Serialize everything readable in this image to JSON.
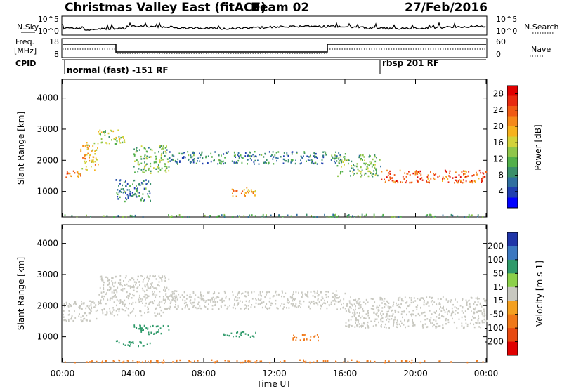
{
  "header": {
    "title": "Christmas Valley East (fitACF)",
    "beam": "Beam 02",
    "date": "27/Feb/2016"
  },
  "top_panels": {
    "nsky_label": "N.Sky",
    "nsearch_label": "N.Search",
    "noise_ticks": [
      "10^5",
      "10^0"
    ],
    "freq_label_1": "Freq.",
    "freq_label_2": "[MHz]",
    "freq_ticks": [
      "18",
      "8"
    ],
    "nave_label": "Nave",
    "nave_ticks": [
      "60",
      "0"
    ],
    "cpid_label": "CPID",
    "cpid_segments": [
      {
        "label": "normal (fast) -151 RF"
      },
      {
        "label": "rbsp 201 RF"
      }
    ]
  },
  "chart_data": [
    {
      "type": "heatmap",
      "name": "power",
      "xlabel": "Time UT",
      "ylabel": "Slant Range [km]",
      "xlim": [
        0,
        24
      ],
      "x_ticks": [
        "00:00",
        "04:00",
        "08:00",
        "12:00",
        "16:00",
        "20:00",
        "00:00"
      ],
      "ylim": [
        180,
        4600
      ],
      "y_ticks": [
        1000,
        2000,
        3000,
        4000
      ],
      "colorbar": {
        "label": "Power [dB]",
        "range": [
          0,
          30
        ],
        "ticks": [
          "4",
          "8",
          "12",
          "16",
          "20",
          "24",
          "28"
        ],
        "colors": [
          "#0000ff",
          "#1f3fb0",
          "#2f6fa0",
          "#3a8f6a",
          "#52b04a",
          "#8fc64a",
          "#d2d23a",
          "#f6b21e",
          "#f5891a",
          "#f05a14",
          "#e82a10",
          "#e00000"
        ]
      },
      "features": [
        {
          "t": [
            0.0,
            1.0
          ],
          "r": [
            1450,
            1700
          ],
          "v": 22
        },
        {
          "t": [
            1.0,
            2.0
          ],
          "r": [
            1700,
            2600
          ],
          "v": 18
        },
        {
          "t": [
            2.0,
            3.5
          ],
          "r": [
            2500,
            3000
          ],
          "v": 14
        },
        {
          "t": [
            4.0,
            6.0
          ],
          "r": [
            1600,
            2500
          ],
          "v": 12
        },
        {
          "t": [
            3.0,
            5.0
          ],
          "r": [
            700,
            1400
          ],
          "v": 8
        },
        {
          "t": [
            9.5,
            11.0
          ],
          "r": [
            850,
            1150
          ],
          "v": 20
        },
        {
          "t": [
            6.0,
            16.0
          ],
          "r": [
            1900,
            2300
          ],
          "v": 8
        },
        {
          "t": [
            15.5,
            18.0
          ],
          "r": [
            1500,
            2200
          ],
          "v": 12
        },
        {
          "t": [
            18.0,
            24.0
          ],
          "r": [
            1300,
            1700
          ],
          "v": 24
        },
        {
          "t": [
            0.0,
            24.0
          ],
          "r": [
            200,
            280
          ],
          "v": 10
        }
      ]
    },
    {
      "type": "heatmap",
      "name": "velocity",
      "xlabel": "Time UT",
      "ylabel": "Slant Range [km]",
      "xlim": [
        0,
        24
      ],
      "x_ticks": [
        "00:00",
        "04:00",
        "08:00",
        "12:00",
        "16:00",
        "20:00",
        "00:00"
      ],
      "ylim": [
        180,
        4600
      ],
      "y_ticks": [
        1000,
        2000,
        3000,
        4000
      ],
      "colorbar": {
        "label": "Velocity [m s-1]",
        "ticks": [
          "200",
          "100",
          "50",
          "15",
          "-15",
          "-50",
          "-100",
          "-200"
        ],
        "colors": [
          "#1f35a8",
          "#3c78c0",
          "#2f9a6a",
          "#8cd04a",
          "#c8c8c0",
          "#f4a020",
          "#f07818",
          "#e84a10",
          "#e00000"
        ]
      },
      "features": [
        {
          "t": [
            0.0,
            2.0
          ],
          "r": [
            1500,
            2200
          ],
          "v": 0
        },
        {
          "t": [
            2.0,
            6.0
          ],
          "r": [
            1700,
            3000
          ],
          "v": 0
        },
        {
          "t": [
            6.0,
            16.0
          ],
          "r": [
            1900,
            2500
          ],
          "v": 0
        },
        {
          "t": [
            16.0,
            24.0
          ],
          "r": [
            1300,
            2300
          ],
          "v": 0
        },
        {
          "t": [
            4.0,
            6.0
          ],
          "r": [
            1100,
            1400
          ],
          "v": 40
        },
        {
          "t": [
            3.0,
            5.0
          ],
          "r": [
            700,
            900
          ],
          "v": 40
        },
        {
          "t": [
            9.0,
            11.0
          ],
          "r": [
            1000,
            1200
          ],
          "v": 40
        },
        {
          "t": [
            13.0,
            14.5
          ],
          "r": [
            900,
            1100
          ],
          "v": -40
        },
        {
          "t": [
            0.0,
            24.0
          ],
          "r": [
            200,
            280
          ],
          "v": -40
        }
      ]
    }
  ]
}
